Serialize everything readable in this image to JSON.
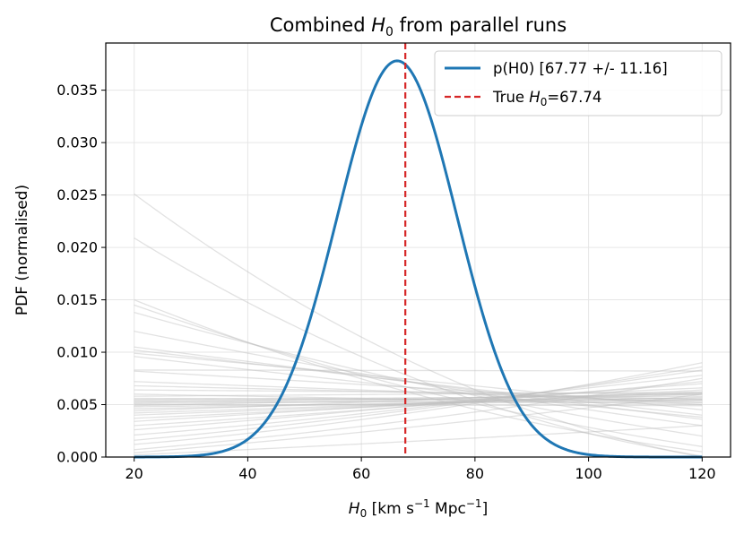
{
  "chart_data": {
    "type": "line",
    "title": "Combined H0 from parallel runs",
    "title_parts": {
      "pre": "Combined ",
      "sym": "H",
      "sub": "0",
      "post": " from parallel runs"
    },
    "xlabel": "H0 [km s-1 Mpc-1]",
    "xlabel_parts": {
      "sym": "H",
      "sub": "0",
      "a": " [km s",
      "sup1": "−1",
      "b": " Mpc",
      "sup2": "−1",
      "c": "]"
    },
    "ylabel": "PDF (normalised)",
    "xlim": [
      15,
      125
    ],
    "ylim": [
      0,
      0.0395
    ],
    "xticks": [
      20,
      40,
      60,
      80,
      100,
      120
    ],
    "yticks": [
      0.0,
      0.005,
      0.01,
      0.015,
      0.02,
      0.025,
      0.03,
      0.035
    ],
    "ytick_labels": [
      "0.000",
      "0.005",
      "0.010",
      "0.015",
      "0.020",
      "0.025",
      "0.030",
      "0.035"
    ],
    "grid": true,
    "legend_position": "top-right",
    "combined": {
      "name": "p(H0) [67.77 +/- 11.16]",
      "color": "#1f77b4",
      "peak_x": 66.3,
      "peak_y": 0.0378,
      "sigma": 10.55,
      "x_range": [
        20,
        120
      ]
    },
    "true_line": {
      "name_pre": "True ",
      "name_sym": "H",
      "name_sub": "0",
      "name_post": "=67.74",
      "name": "True H0=67.74",
      "x": 67.74,
      "color": "#d62728"
    },
    "runs": {
      "color": "#bfbfbf",
      "x_range": [
        20,
        120
      ],
      "series": [
        {
          "y20": 0.0251,
          "y120": 0.0,
          "curv": 0.6
        },
        {
          "y20": 0.0209,
          "y120": 0.0001,
          "curv": 0.6
        },
        {
          "y20": 0.015,
          "y120": 0.0005,
          "curv": 0.5
        },
        {
          "y20": 0.0145,
          "y120": 0.001,
          "curv": 0.4
        },
        {
          "y20": 0.0138,
          "y120": 0.002,
          "curv": 0.3
        },
        {
          "y20": 0.012,
          "y120": 0.003,
          "curv": 0.2
        },
        {
          "y20": 0.0105,
          "y120": 0.0036,
          "curv": 0.0
        },
        {
          "y20": 0.0102,
          "y120": 0.004,
          "curv": 0.0
        },
        {
          "y20": 0.0099,
          "y120": 0.0045,
          "curv": -0.1
        },
        {
          "y20": 0.0096,
          "y120": 0.0038,
          "curv": 0.1
        },
        {
          "y20": 0.0083,
          "y120": 0.0082,
          "curv": -0.2
        },
        {
          "y20": 0.0082,
          "y120": 0.005,
          "curv": 0.0
        },
        {
          "y20": 0.0072,
          "y120": 0.0052,
          "curv": 0.0
        },
        {
          "y20": 0.0068,
          "y120": 0.0055,
          "curv": 0.0
        },
        {
          "y20": 0.0064,
          "y120": 0.006,
          "curv": 0.0
        },
        {
          "y20": 0.006,
          "y120": 0.005,
          "curv": 0.0
        },
        {
          "y20": 0.0058,
          "y120": 0.0062,
          "curv": 0.0
        },
        {
          "y20": 0.0056,
          "y120": 0.0054,
          "curv": 0.0
        },
        {
          "y20": 0.0055,
          "y120": 0.0058,
          "curv": 0.0
        },
        {
          "y20": 0.0054,
          "y120": 0.0056,
          "curv": 0.0
        },
        {
          "y20": 0.0053,
          "y120": 0.0052,
          "curv": 0.0
        },
        {
          "y20": 0.0052,
          "y120": 0.006,
          "curv": 0.0
        },
        {
          "y20": 0.0051,
          "y120": 0.0055,
          "curv": 0.0
        },
        {
          "y20": 0.005,
          "y120": 0.0049,
          "curv": 0.0
        },
        {
          "y20": 0.0049,
          "y120": 0.0061,
          "curv": 0.0
        },
        {
          "y20": 0.0048,
          "y120": 0.0054,
          "curv": 0.0
        },
        {
          "y20": 0.0046,
          "y120": 0.0057,
          "curv": 0.0
        },
        {
          "y20": 0.0044,
          "y120": 0.0066,
          "curv": -0.1
        },
        {
          "y20": 0.0042,
          "y120": 0.006,
          "curv": 0.0
        },
        {
          "y20": 0.004,
          "y120": 0.0062,
          "curv": -0.1
        },
        {
          "y20": 0.0037,
          "y120": 0.0064,
          "curv": -0.1
        },
        {
          "y20": 0.0034,
          "y120": 0.007,
          "curv": -0.1
        },
        {
          "y20": 0.003,
          "y120": 0.0072,
          "curv": -0.2
        },
        {
          "y20": 0.0026,
          "y120": 0.0078,
          "curv": -0.2
        },
        {
          "y20": 0.0021,
          "y120": 0.0083,
          "curv": -0.3
        },
        {
          "y20": 0.0016,
          "y120": 0.0086,
          "curv": -0.3
        },
        {
          "y20": 0.0012,
          "y120": 0.009,
          "curv": -0.4
        },
        {
          "y20": 0.0007,
          "y120": 0.0075,
          "curv": -0.3
        },
        {
          "y20": 0.0004,
          "y120": 0.006,
          "curv": -0.2
        },
        {
          "y20": 0.0002,
          "y120": 0.003,
          "curv": -0.1
        }
      ]
    }
  }
}
